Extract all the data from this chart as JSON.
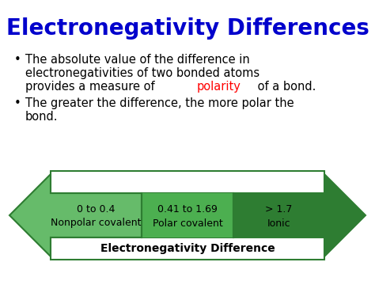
{
  "title": "Electronegativity Differences",
  "title_color": "#0000CC",
  "title_fontsize": 20,
  "bg_color": "#FFFFFF",
  "bullet_color": "#000000",
  "bullet_fontsize": 10.5,
  "line1": "The absolute value of the difference in",
  "line2": "electronegativities of two bonded atoms",
  "line3_pre": "provides a measure of ",
  "line3_pol": "polarity",
  "line3_post": " of a bond.",
  "polarity_color": "#FF0000",
  "bullet2_line1": "The greater the difference, the more polar the",
  "bullet2_line2": "bond.",
  "arrow_color_light": "#66BB6A",
  "arrow_color_mid": "#4CAF50",
  "arrow_color_dark": "#2E7D32",
  "arrow_edge": "#2E7D32",
  "cells": [
    {
      "range": "0 to 0.4",
      "label": "Nonpolar covalent"
    },
    {
      "range": "0.41 to 1.69",
      "label": "Polar covalent"
    },
    {
      "range": "> 1.7",
      "label": "Ionic"
    }
  ],
  "cell_text_colors": [
    "#000000",
    "#000000",
    "#000000"
  ],
  "axis_label": "Electronegativity Difference",
  "axis_label_fontsize": 10
}
